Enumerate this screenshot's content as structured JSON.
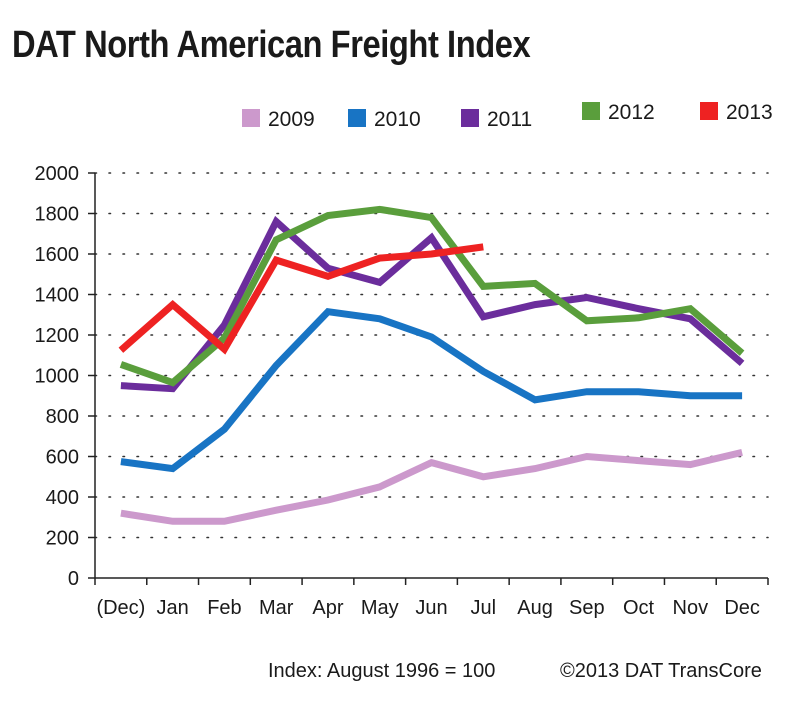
{
  "header": {
    "title": "DAT North American Freight Index"
  },
  "footer": {
    "index_note": "Index: August  1996 = 100",
    "copyright": "©2013 DAT TransCore"
  },
  "chart_data": {
    "type": "line",
    "title": "DAT North American Freight Index",
    "xlabel": "",
    "ylabel": "",
    "categories": [
      "(Dec)",
      "Jan",
      "Feb",
      "Mar",
      "Apr",
      "May",
      "Jun",
      "Jul",
      "Aug",
      "Sep",
      "Oct",
      "Nov",
      "Dec"
    ],
    "ylim": [
      0,
      2000
    ],
    "yticks": [
      0,
      200,
      400,
      600,
      800,
      1000,
      1200,
      1400,
      1600,
      1800,
      2000
    ],
    "grid": "dotted",
    "legend_position": "top",
    "series": [
      {
        "name": "2009",
        "color": "#cc99cc",
        "values": [
          320,
          280,
          280,
          335,
          385,
          450,
          570,
          500,
          540,
          600,
          580,
          560,
          620
        ]
      },
      {
        "name": "2010",
        "color": "#1874c4",
        "values": [
          575,
          540,
          735,
          1050,
          1315,
          1280,
          1190,
          1020,
          880,
          920,
          920,
          900,
          900
        ]
      },
      {
        "name": "2011",
        "color": "#6b2d9c",
        "values": [
          950,
          935,
          1250,
          1760,
          1530,
          1460,
          1680,
          1290,
          1350,
          1385,
          1330,
          1280,
          1060
        ]
      },
      {
        "name": "2012",
        "color": "#5a9e3c",
        "values": [
          1055,
          965,
          1185,
          1670,
          1790,
          1820,
          1780,
          1440,
          1455,
          1270,
          1285,
          1330,
          1110
        ]
      },
      {
        "name": "2013",
        "color": "#ee2222",
        "values": [
          1125,
          1350,
          1130,
          1570,
          1490,
          1580,
          1600,
          1635,
          null,
          null,
          null,
          null,
          null
        ]
      }
    ]
  }
}
